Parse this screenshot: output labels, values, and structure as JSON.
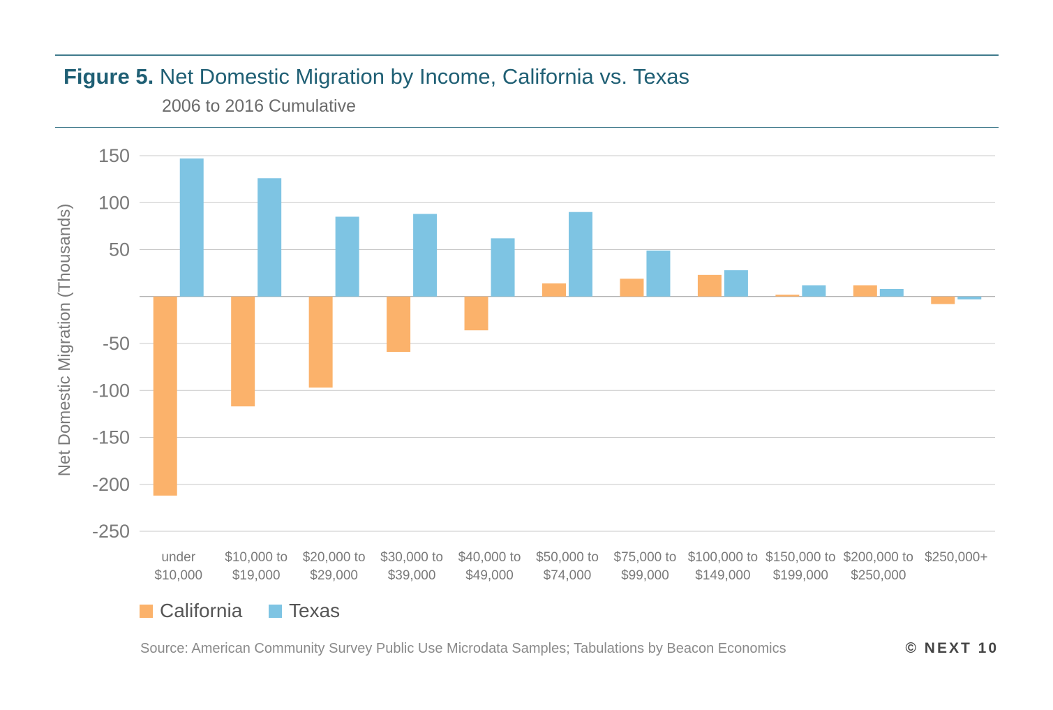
{
  "header": {
    "figure_label": "Figure 5.",
    "title": "Net Domestic Migration by Income, California vs. Texas",
    "subtitle": "2006 to 2016 Cumulative"
  },
  "footer": {
    "source": "Source: American Community Survey Public Use Microdata Samples; Tabulations by Beacon Economics",
    "copyright": "© NEXT 10"
  },
  "colors": {
    "california": "#fbb26b",
    "texas": "#7ec4e3",
    "accent": "#1f5f74",
    "grid": "#c8c8c8"
  },
  "chart_data": {
    "type": "bar",
    "ylabel": "Net Domestic Migration (Thousands)",
    "xlabel": "",
    "ylim": [
      -250,
      150
    ],
    "yticks": [
      150,
      100,
      50,
      0,
      -50,
      -100,
      -150,
      -200,
      -250
    ],
    "ytick_labels": [
      "150",
      "100",
      "50",
      "",
      "-50",
      "-100",
      "-150",
      "-200",
      "-250"
    ],
    "grid": true,
    "legend": "bottom-left",
    "categories": [
      [
        "under",
        "$10,000"
      ],
      [
        "$10,000 to",
        "$19,000"
      ],
      [
        "$20,000 to",
        "$29,000"
      ],
      [
        "$30,000 to",
        "$39,000"
      ],
      [
        "$40,000 to",
        "$49,000"
      ],
      [
        "$50,000 to",
        "$74,000"
      ],
      [
        "$75,000 to",
        "$99,000"
      ],
      [
        "$100,000 to",
        "$149,000"
      ],
      [
        "$150,000 to",
        "$199,000"
      ],
      [
        "$200,000 to",
        "$250,000"
      ],
      [
        "$250,000+",
        ""
      ]
    ],
    "series": [
      {
        "name": "California",
        "color": "#fbb26b",
        "values": [
          -212,
          -117,
          -97,
          -59,
          -36,
          14,
          19,
          23,
          2,
          12,
          -8
        ]
      },
      {
        "name": "Texas",
        "color": "#7ec4e3",
        "values": [
          147,
          126,
          85,
          88,
          62,
          90,
          49,
          28,
          12,
          8,
          -3
        ]
      }
    ]
  }
}
